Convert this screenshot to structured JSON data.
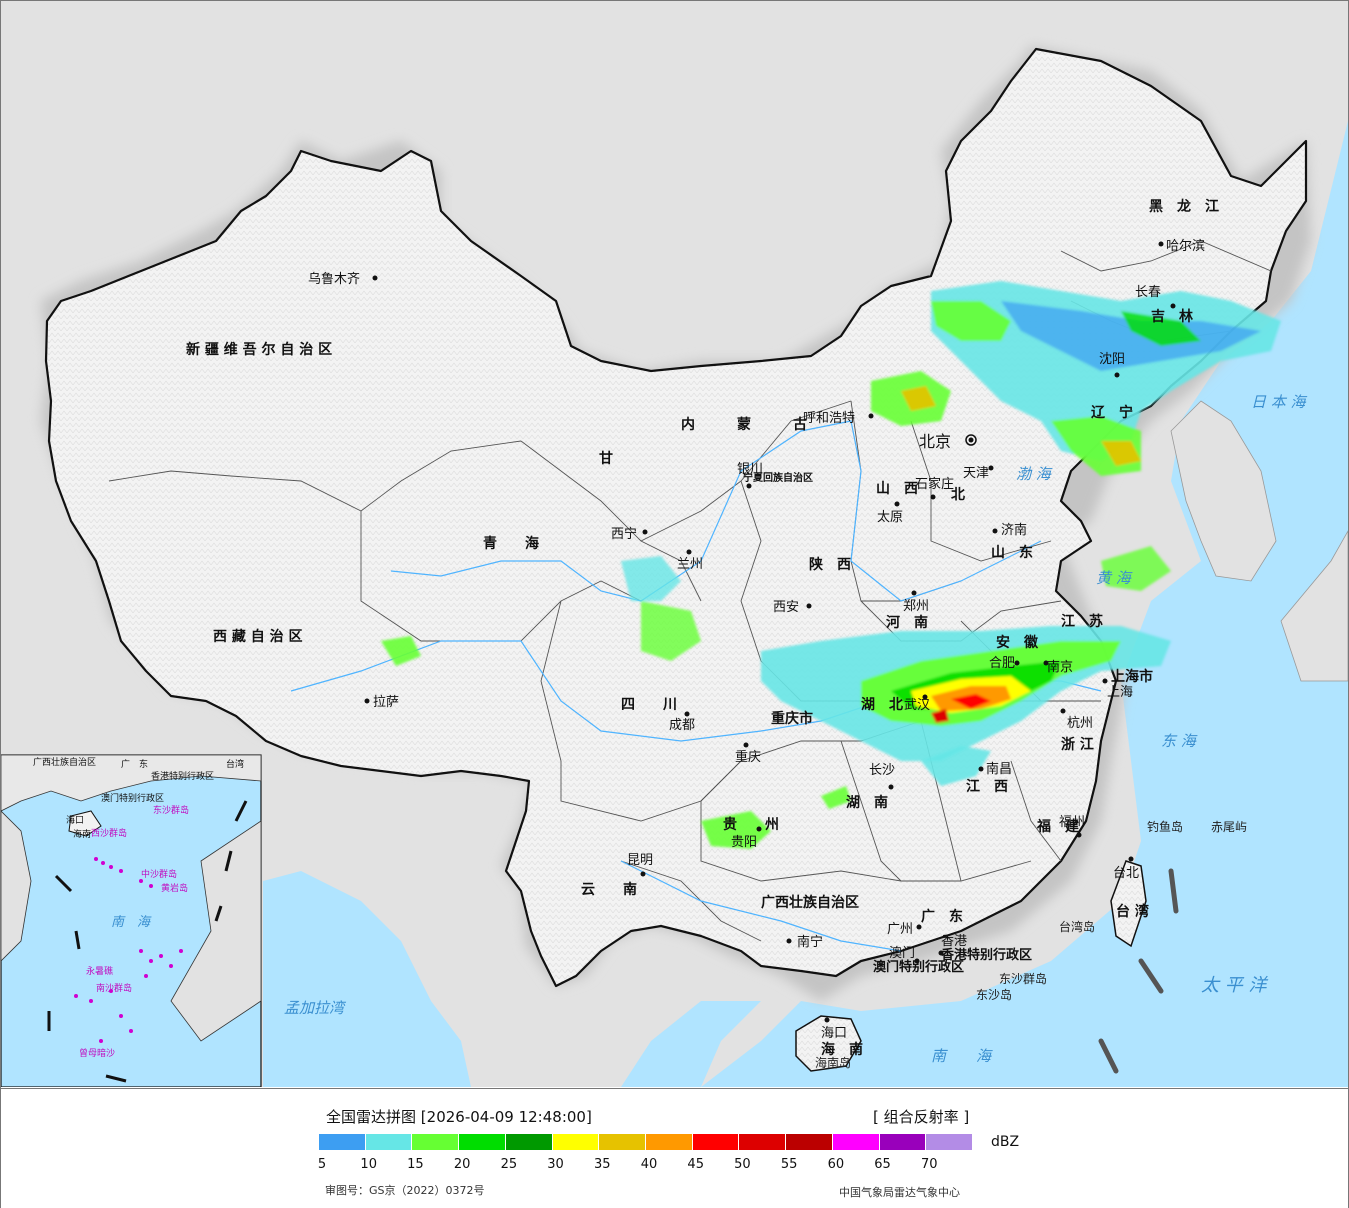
{
  "title": "全国雷达拼图",
  "timestamp": "[2026-04-09 12:48:00]",
  "product": "[ 组合反射率 ]",
  "unit": "dBZ",
  "approval_no": "审图号：GS京（2022）0372号",
  "publisher": "中国气象局雷达气象中心",
  "legend": {
    "ticks": [
      "5",
      "10",
      "15",
      "20",
      "25",
      "30",
      "35",
      "40",
      "45",
      "50",
      "55",
      "60",
      "65",
      "70"
    ],
    "colors": [
      "#3d9ef2",
      "#66e6e6",
      "#66ff33",
      "#00dd00",
      "#009900",
      "#ffff00",
      "#e6c200",
      "#ff9900",
      "#ff0000",
      "#dd0000",
      "#bb0000",
      "#ff00ff",
      "#9900bb",
      "#b38ce6"
    ]
  },
  "colors": {
    "sea": "#b0e4ff",
    "land_china": "#f2f2f2",
    "land_other": "#e2e2e2",
    "border": "#111111",
    "river": "#4fb4ff"
  },
  "regions": [
    {
      "id": "xinjiang",
      "text": "新 疆 维 吾 尔 自 治 区"
    },
    {
      "id": "xizang",
      "text": "西 藏 自 治 区"
    },
    {
      "id": "qinghai",
      "text": "青　　海"
    },
    {
      "id": "gansu",
      "text": "甘"
    },
    {
      "id": "sichuan",
      "text": "四　　川"
    },
    {
      "id": "yunnan",
      "text": "云　　南"
    },
    {
      "id": "guizhou",
      "text": "贵　　州"
    },
    {
      "id": "chongqing",
      "text": "重庆市"
    },
    {
      "id": "shaanxi",
      "text": "陕　西"
    },
    {
      "id": "shanxi",
      "text": "山　西"
    },
    {
      "id": "henan",
      "text": "河　南"
    },
    {
      "id": "shandong",
      "text": "山　东"
    },
    {
      "id": "hebei",
      "text": "北"
    },
    {
      "id": "neimenggu",
      "text": "内　　　蒙　　　古"
    },
    {
      "id": "heilongjiang",
      "text": "黑　龙　江"
    },
    {
      "id": "jilin",
      "text": "吉　林"
    },
    {
      "id": "liaoning",
      "text": "辽　宁"
    },
    {
      "id": "jiangsu",
      "text": "江　苏"
    },
    {
      "id": "anhui",
      "text": "安　徽"
    },
    {
      "id": "hubei",
      "text": "湖　北"
    },
    {
      "id": "hunan",
      "text": "湖　南"
    },
    {
      "id": "jiangxi",
      "text": "江　西"
    },
    {
      "id": "zhejiang",
      "text": "浙 江"
    },
    {
      "id": "fujian",
      "text": "福　建"
    },
    {
      "id": "guangdong",
      "text": "广　东"
    },
    {
      "id": "guangxi",
      "text": "广西壮族自治区"
    },
    {
      "id": "hainan",
      "text": "海　南"
    },
    {
      "id": "taiwan",
      "text": "台 湾"
    },
    {
      "id": "shanghai",
      "text": "上海市"
    },
    {
      "id": "ningxia",
      "text": "宁夏回族自治区"
    },
    {
      "id": "hk",
      "text": "香港特别行政区"
    },
    {
      "id": "macau",
      "text": "澳门特别行政区"
    }
  ],
  "cities": [
    {
      "id": "urumqi",
      "text": "乌鲁木齐"
    },
    {
      "id": "lhasa",
      "text": "拉萨"
    },
    {
      "id": "xining",
      "text": "西宁"
    },
    {
      "id": "lanzhou",
      "text": "兰州"
    },
    {
      "id": "yinchuan",
      "text": "银川"
    },
    {
      "id": "hohhot",
      "text": "呼和浩特"
    },
    {
      "id": "beijing",
      "text": "北京"
    },
    {
      "id": "tianjin",
      "text": "天津"
    },
    {
      "id": "shijiazhuang",
      "text": "石家庄"
    },
    {
      "id": "taiyuan",
      "text": "太原"
    },
    {
      "id": "jinan",
      "text": "济南"
    },
    {
      "id": "zhengzhou",
      "text": "郑州"
    },
    {
      "id": "xian",
      "text": "西安"
    },
    {
      "id": "chengdu",
      "text": "成都"
    },
    {
      "id": "chongqing_c",
      "text": "重庆"
    },
    {
      "id": "guiyang",
      "text": "贵阳"
    },
    {
      "id": "kunming",
      "text": "昆明"
    },
    {
      "id": "nanning",
      "text": "南宁"
    },
    {
      "id": "guangzhou",
      "text": "广州"
    },
    {
      "id": "macau_c",
      "text": "澳门"
    },
    {
      "id": "hongkong",
      "text": "香港"
    },
    {
      "id": "haikou",
      "text": "海口"
    },
    {
      "id": "changsha",
      "text": "长沙"
    },
    {
      "id": "wuhan",
      "text": "武汉"
    },
    {
      "id": "nanchang",
      "text": "南昌"
    },
    {
      "id": "hefei",
      "text": "合肥"
    },
    {
      "id": "nanjing",
      "text": "南京"
    },
    {
      "id": "shanghai_c",
      "text": "上海"
    },
    {
      "id": "hangzhou",
      "text": "杭州"
    },
    {
      "id": "fuzhou",
      "text": "福州"
    },
    {
      "id": "taipei",
      "text": "台北"
    },
    {
      "id": "shenyang",
      "text": "沈阳"
    },
    {
      "id": "changchun",
      "text": "长春"
    },
    {
      "id": "harbin",
      "text": "哈尔滨"
    }
  ],
  "seas": [
    {
      "id": "bohai",
      "text": "渤 海"
    },
    {
      "id": "huanghai",
      "text": "黄 海"
    },
    {
      "id": "donghai",
      "text": "东 海"
    },
    {
      "id": "nanhai",
      "text": "南　　海"
    },
    {
      "id": "riben",
      "text": "日 本 海"
    },
    {
      "id": "taipingyang",
      "text": "太 平 洋"
    },
    {
      "id": "mengjiala",
      "text": "孟加拉湾"
    }
  ],
  "islands": [
    {
      "id": "diaoyu",
      "text": "钓鱼岛"
    },
    {
      "id": "chiwei",
      "text": "赤尾屿"
    },
    {
      "id": "taiwandao",
      "text": "台湾岛"
    },
    {
      "id": "hainandao",
      "text": "海南岛"
    },
    {
      "id": "dongsha",
      "text": "东沙群岛"
    },
    {
      "id": "dongsha_dao",
      "text": "东沙岛"
    }
  ],
  "inset": {
    "nanhai_label": "南　海",
    "labels": [
      "广西壮族自治区",
      "广　东",
      "台湾",
      "香港特别行政区",
      "澳门特别行政区",
      "海口",
      "海南",
      "东沙群岛",
      "西沙群岛",
      "中沙群岛",
      "黄岩岛",
      "南沙群岛",
      "永暑礁",
      "曾母暗沙"
    ]
  }
}
